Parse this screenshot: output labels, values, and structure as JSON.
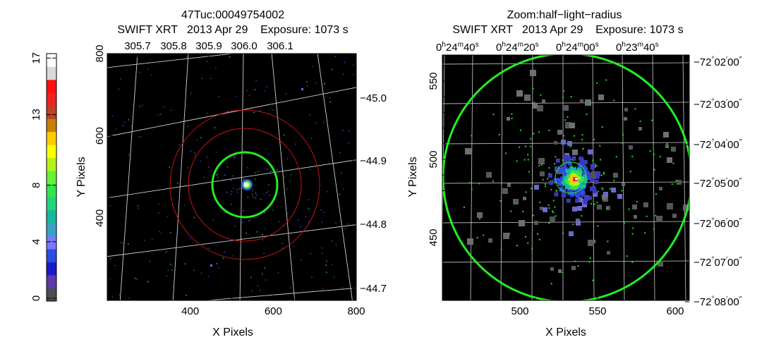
{
  "colorbar": {
    "ticks": [
      {
        "label": "0",
        "value": 0
      },
      {
        "label": "4",
        "value": 4
      },
      {
        "label": "8",
        "value": 8
      },
      {
        "label": "13",
        "value": 13
      },
      {
        "label": "17",
        "value": 17
      }
    ],
    "colors": [
      "#4d4d4d",
      "#5c3aa8",
      "#1a1acc",
      "#2a4de6",
      "#7a7aff",
      "#3aa3c4",
      "#17b8a0",
      "#1fd67a",
      "#33e64d",
      "#66f233",
      "#b3f21a",
      "#ffff00",
      "#ffcc00",
      "#c88000",
      "#c04020",
      "#ee2222",
      "#ff1010",
      "#d9d9d9",
      "#ffffff"
    ]
  },
  "left_panel": {
    "title": "47Tuc:00049754002",
    "subtitle": "SWIFT XRT   2013 Apr 29    Exposure: 1073 s",
    "xlabel": "X Pixels",
    "ylabel": "Y Pixels",
    "x_ticks": [
      "400",
      "600",
      "800"
    ],
    "y_ticks": [
      "400",
      "600",
      "800"
    ],
    "top_ticks": [
      "305.7",
      "305.8",
      "305.9",
      "306.0",
      "306.1"
    ],
    "right_ticks": [
      "−45.0",
      "−44.9",
      "−44.8",
      "−44.7"
    ]
  },
  "right_panel": {
    "title": "Zoom:half−light−radius",
    "subtitle": "SWIFT XRT   2013 Apr 29    Exposure: 1073 s",
    "xlabel": "X Pixels",
    "ylabel": "Y Pixels",
    "x_ticks": [
      "500",
      "550",
      "600"
    ],
    "y_ticks": [
      "450",
      "500",
      "550"
    ],
    "top_ticks": [
      {
        "h": "0",
        "m": "24",
        "s": "40"
      },
      {
        "h": "0",
        "m": "24",
        "s": "20"
      },
      {
        "h": "0",
        "m": "24",
        "s": "00"
      },
      {
        "h": "0",
        "m": "23",
        "s": "40"
      }
    ],
    "right_ticks": [
      {
        "d": "−72",
        "m": "02",
        "s": "00"
      },
      {
        "d": "−72",
        "m": "03",
        "s": "00"
      },
      {
        "d": "−72",
        "m": "04",
        "s": "00"
      },
      {
        "d": "−72",
        "m": "05",
        "s": "00"
      },
      {
        "d": "−72",
        "m": "06",
        "s": "00"
      },
      {
        "d": "−72",
        "m": "07",
        "s": "00"
      },
      {
        "d": "−72",
        "m": "08",
        "s": "00"
      }
    ]
  },
  "chart_data": [
    {
      "type": "heatmap",
      "title": "47Tuc:00049754002",
      "subtitle": "SWIFT XRT   2013 Apr 29    Exposure: 1073 s",
      "xlabel": "X Pixels",
      "ylabel": "Y Pixels",
      "xlim": [
        200,
        800
      ],
      "ylim": [
        200,
        800
      ],
      "colorbar": {
        "min": 0,
        "max": 17,
        "ticks": [
          0,
          4,
          8,
          13,
          17
        ]
      },
      "source": {
        "x": 536,
        "y": 522,
        "label_color": "#00ff00"
      },
      "circles": [
        {
          "r": 80,
          "color": "#00ee00"
        },
        {
          "r": 130,
          "color": "#cc1111"
        },
        {
          "r": 165,
          "color": "#cc1111"
        }
      ]
    },
    {
      "type": "heatmap",
      "title": "Zoom:half−light−radius",
      "subtitle": "SWIFT XRT   2013 Apr 29    Exposure: 1073 s",
      "xlabel": "X Pixels",
      "ylabel": "Y Pixels",
      "xlim": [
        451,
        610
      ],
      "ylim": [
        418,
        570
      ],
      "circle": {
        "x": 531,
        "y": 494,
        "r": 86,
        "color": "#00ee00"
      }
    }
  ]
}
